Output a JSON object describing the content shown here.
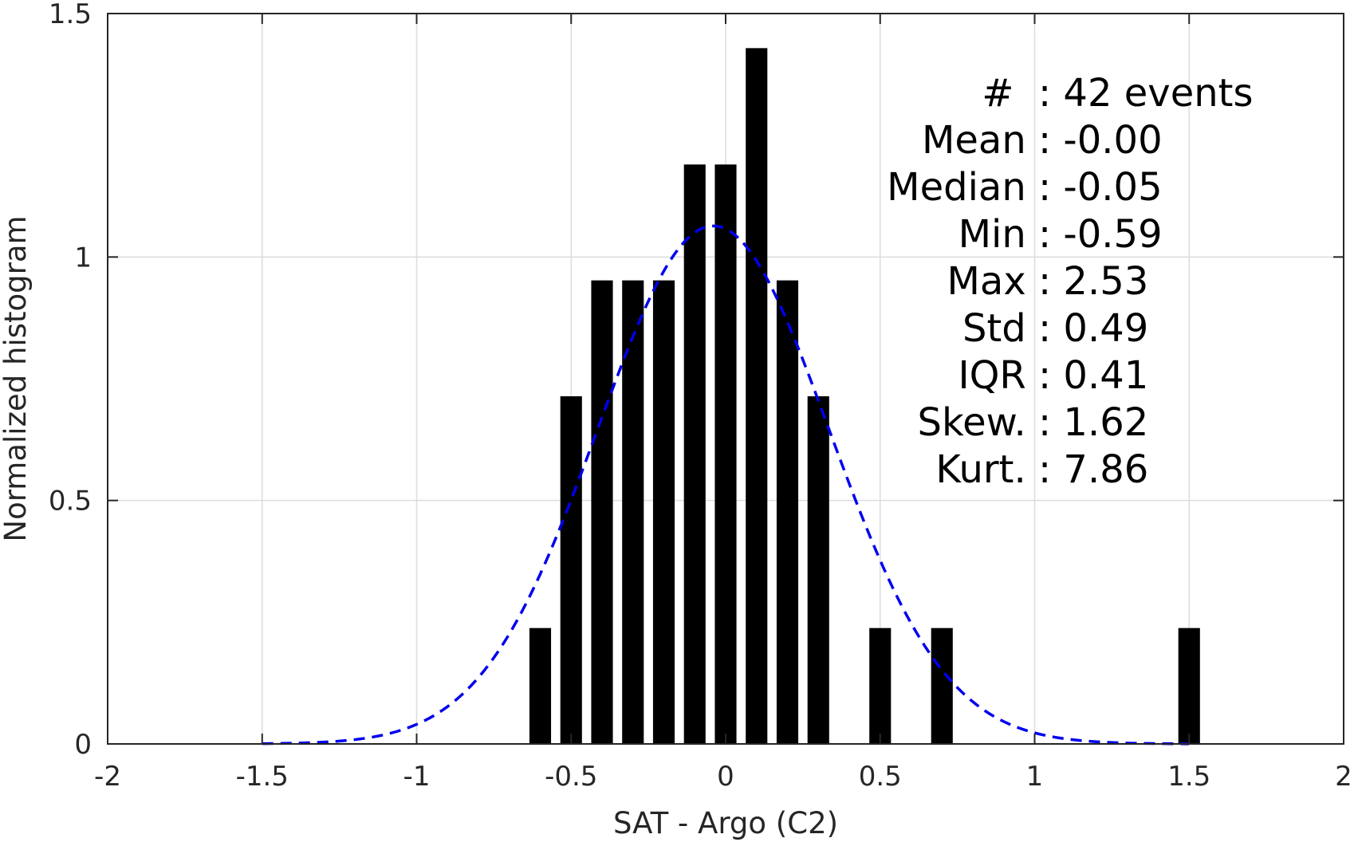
{
  "chart_data": {
    "type": "bar",
    "title": "",
    "xlabel": "SAT - Argo (C2)",
    "ylabel": "Normalized histogram",
    "xlim": [
      -2,
      2
    ],
    "ylim": [
      0,
      1.5
    ],
    "grid": true,
    "xticks": [
      "-2",
      "-1.5",
      "-1",
      "-0.5",
      "0",
      "0.5",
      "1",
      "1.5",
      "2"
    ],
    "xtick_values": [
      -2,
      -1.5,
      -1,
      -0.5,
      0,
      0.5,
      1,
      1.5,
      2
    ],
    "yticks": [
      "0",
      "0.5",
      "1",
      "1.5"
    ],
    "ytick_values": [
      0,
      0.5,
      1,
      1.5
    ],
    "bar_width": 0.07,
    "bar_color": "#000000",
    "bars": [
      {
        "x": -0.6,
        "y": 0.238
      },
      {
        "x": -0.5,
        "y": 0.714
      },
      {
        "x": -0.4,
        "y": 0.952
      },
      {
        "x": -0.3,
        "y": 0.952
      },
      {
        "x": -0.2,
        "y": 0.952
      },
      {
        "x": -0.1,
        "y": 1.19
      },
      {
        "x": 0.0,
        "y": 1.19
      },
      {
        "x": 0.1,
        "y": 1.429
      },
      {
        "x": 0.2,
        "y": 0.952
      },
      {
        "x": 0.3,
        "y": 0.714
      },
      {
        "x": 0.5,
        "y": 0.238
      },
      {
        "x": 0.7,
        "y": 0.238
      },
      {
        "x": 1.5,
        "y": 0.238
      }
    ],
    "fit_curve": {
      "type": "normal-pdf",
      "mean": -0.04,
      "std": 0.375,
      "x_range": [
        -1.5,
        1.5
      ],
      "color": "#0000ee",
      "style": "dashed"
    },
    "stats": [
      "#  : 42 events",
      "Mean : -0.00",
      "Median : -0.05",
      "Min : -0.59",
      "Max : 2.53",
      "Std : 0.49",
      "IQR : 0.41",
      "Skew. : 1.62",
      "Kurt. : 7.86"
    ],
    "stats_placement": "top-right"
  }
}
